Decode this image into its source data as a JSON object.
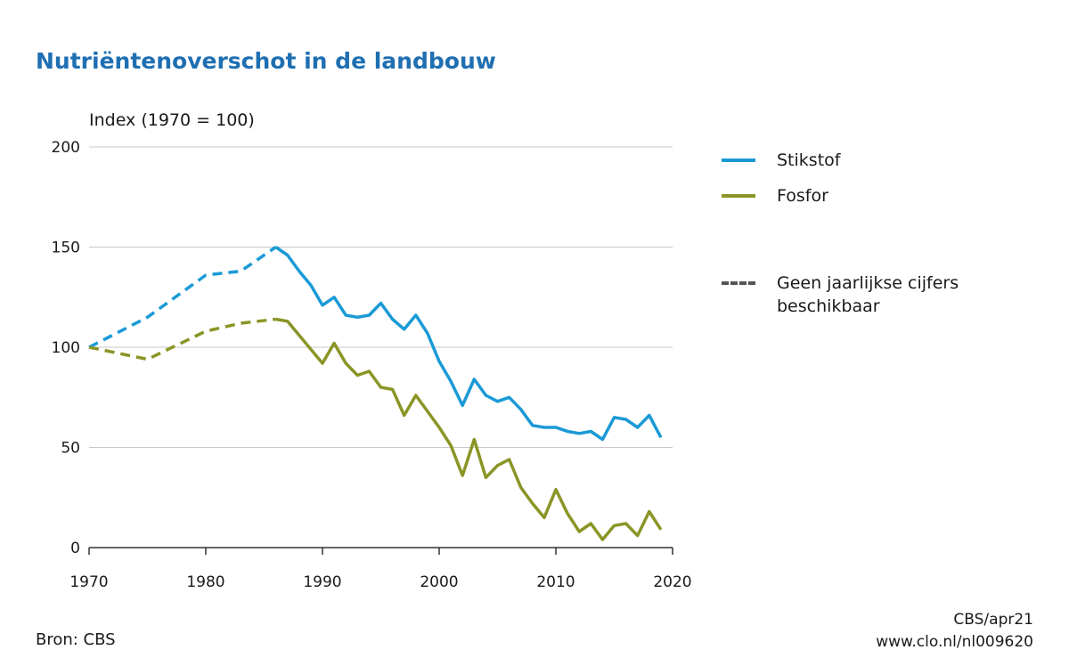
{
  "title": "Nutriëntenoverschot in de landbouw",
  "source": "Bron: CBS",
  "credit": {
    "line1": "CBS/apr21",
    "line2": "www.clo.nl/nl009620"
  },
  "legend": {
    "dashed_label_line1": "Geen jaarlijkse cijfers",
    "dashed_label_line2": "beschikbaar",
    "dashed_color": "#555555"
  },
  "chart_data": {
    "type": "line",
    "title": "Nutriëntenoverschot in de landbouw",
    "xlabel": "",
    "ylabel": "Index (1970 = 100)",
    "xlim": [
      1970,
      2020
    ],
    "ylim": [
      0,
      200
    ],
    "xticks": [
      1970,
      1980,
      1990,
      2000,
      2010,
      2020
    ],
    "yticks": [
      0,
      50,
      100,
      150,
      200
    ],
    "grid": "horizontal",
    "legend_position": "right",
    "series": [
      {
        "name": "Stikstof",
        "color": "#1a9ad6",
        "dashed": [
          [
            1970,
            100
          ],
          [
            1975,
            115
          ],
          [
            1980,
            136
          ],
          [
            1983,
            138
          ],
          [
            1986,
            150
          ]
        ],
        "solid": [
          [
            1986,
            150
          ],
          [
            1987,
            146
          ],
          [
            1988,
            138
          ],
          [
            1989,
            131
          ],
          [
            1990,
            121
          ],
          [
            1991,
            125
          ],
          [
            1992,
            116
          ],
          [
            1993,
            115
          ],
          [
            1994,
            116
          ],
          [
            1995,
            122
          ],
          [
            1996,
            114
          ],
          [
            1997,
            109
          ],
          [
            1998,
            116
          ],
          [
            1999,
            107
          ],
          [
            2000,
            93
          ],
          [
            2001,
            83
          ],
          [
            2002,
            71
          ],
          [
            2003,
            84
          ],
          [
            2004,
            76
          ],
          [
            2005,
            73
          ],
          [
            2006,
            75
          ],
          [
            2007,
            69
          ],
          [
            2008,
            61
          ],
          [
            2009,
            60
          ],
          [
            2010,
            60
          ],
          [
            2011,
            58
          ],
          [
            2012,
            57
          ],
          [
            2013,
            58
          ],
          [
            2014,
            54
          ],
          [
            2015,
            65
          ],
          [
            2016,
            64
          ],
          [
            2017,
            60
          ],
          [
            2018,
            66
          ],
          [
            2019,
            55
          ]
        ]
      },
      {
        "name": "Fosfor",
        "color": "#8a9526",
        "dashed": [
          [
            1970,
            100
          ],
          [
            1975,
            94
          ],
          [
            1980,
            108
          ],
          [
            1983,
            112
          ],
          [
            1986,
            114
          ]
        ],
        "solid": [
          [
            1986,
            114
          ],
          [
            1987,
            113
          ],
          [
            1988,
            106
          ],
          [
            1989,
            99
          ],
          [
            1990,
            92
          ],
          [
            1991,
            102
          ],
          [
            1992,
            92
          ],
          [
            1993,
            86
          ],
          [
            1994,
            88
          ],
          [
            1995,
            80
          ],
          [
            1996,
            79
          ],
          [
            1997,
            66
          ],
          [
            1998,
            76
          ],
          [
            1999,
            68
          ],
          [
            2000,
            60
          ],
          [
            2001,
            51
          ],
          [
            2002,
            36
          ],
          [
            2003,
            54
          ],
          [
            2004,
            35
          ],
          [
            2005,
            41
          ],
          [
            2006,
            44
          ],
          [
            2007,
            30
          ],
          [
            2008,
            22
          ],
          [
            2009,
            15
          ],
          [
            2010,
            29
          ],
          [
            2011,
            17
          ],
          [
            2012,
            8
          ],
          [
            2013,
            12
          ],
          [
            2014,
            4
          ],
          [
            2015,
            11
          ],
          [
            2016,
            12
          ],
          [
            2017,
            6
          ],
          [
            2018,
            18
          ],
          [
            2019,
            9
          ]
        ]
      }
    ]
  }
}
